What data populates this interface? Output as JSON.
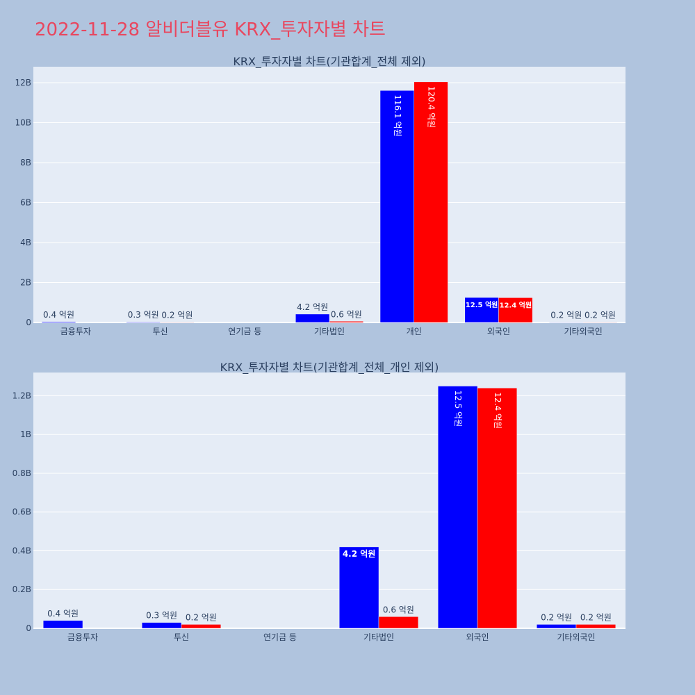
{
  "page": {
    "title": "2022-11-28 알비더블유 KRX_투자자별 차트"
  },
  "colors": {
    "background": "#b0c4de",
    "plot_bg": "#e5ecf6",
    "series_a": "#0000ff",
    "series_b": "#ff0000",
    "title": "#e8475f"
  },
  "chart_data": [
    {
      "type": "bar",
      "title": "KRX_투자자별 차트(기관합계_전체 제외)",
      "categories": [
        "금융투자",
        "투신",
        "연기금 등",
        "기타법인",
        "개인",
        "외국인",
        "기타외국인"
      ],
      "ylim": [
        0,
        12800000000
      ],
      "yticks": [
        {
          "value": 0,
          "label": "0"
        },
        {
          "value": 2000000000,
          "label": "2B"
        },
        {
          "value": 4000000000,
          "label": "4B"
        },
        {
          "value": 6000000000,
          "label": "6B"
        },
        {
          "value": 8000000000,
          "label": "8B"
        },
        {
          "value": 10000000000,
          "label": "10B"
        },
        {
          "value": 12000000000,
          "label": "12B"
        }
      ],
      "grid": true,
      "series": [
        {
          "color": "#0000ff",
          "values": [
            40000000,
            30000000,
            0,
            420000000,
            11610000000,
            1250000000,
            20000000
          ],
          "labels": [
            "0.4 억원",
            "0.3 억원",
            "",
            "4.2 억원",
            "116.1 억원",
            "12.5 억원",
            "0.2 억원"
          ]
        },
        {
          "color": "#ff0000",
          "values": [
            0,
            20000000,
            0,
            60000000,
            12040000000,
            1240000000,
            20000000
          ],
          "labels": [
            "",
            "0.2 억원",
            "",
            "0.6 억원",
            "120.4 억원",
            "12.4 억원",
            "0.2 억원"
          ]
        }
      ]
    },
    {
      "type": "bar",
      "title": "KRX_투자자별 차트(기관합계_전체_개인 제외)",
      "categories": [
        "금융투자",
        "투신",
        "연기금 등",
        "기타법인",
        "외국인",
        "기타외국인"
      ],
      "ylim": [
        0,
        1320000000
      ],
      "yticks": [
        {
          "value": 0,
          "label": "0"
        },
        {
          "value": 200000000,
          "label": "0.2B"
        },
        {
          "value": 400000000,
          "label": "0.4B"
        },
        {
          "value": 600000000,
          "label": "0.6B"
        },
        {
          "value": 800000000,
          "label": "0.8B"
        },
        {
          "value": 1000000000,
          "label": "1B"
        },
        {
          "value": 1200000000,
          "label": "1.2B"
        }
      ],
      "grid": true,
      "series": [
        {
          "color": "#0000ff",
          "values": [
            40000000,
            30000000,
            0,
            420000000,
            1250000000,
            20000000
          ],
          "labels": [
            "0.4 억원",
            "0.3 억원",
            "",
            "4.2 억원",
            "12.5 억원",
            "0.2 억원"
          ]
        },
        {
          "color": "#ff0000",
          "values": [
            0,
            20000000,
            0,
            60000000,
            1240000000,
            20000000
          ],
          "labels": [
            "",
            "0.2 억원",
            "",
            "0.6 억원",
            "12.4 억원",
            "0.2 억원"
          ]
        }
      ]
    }
  ]
}
